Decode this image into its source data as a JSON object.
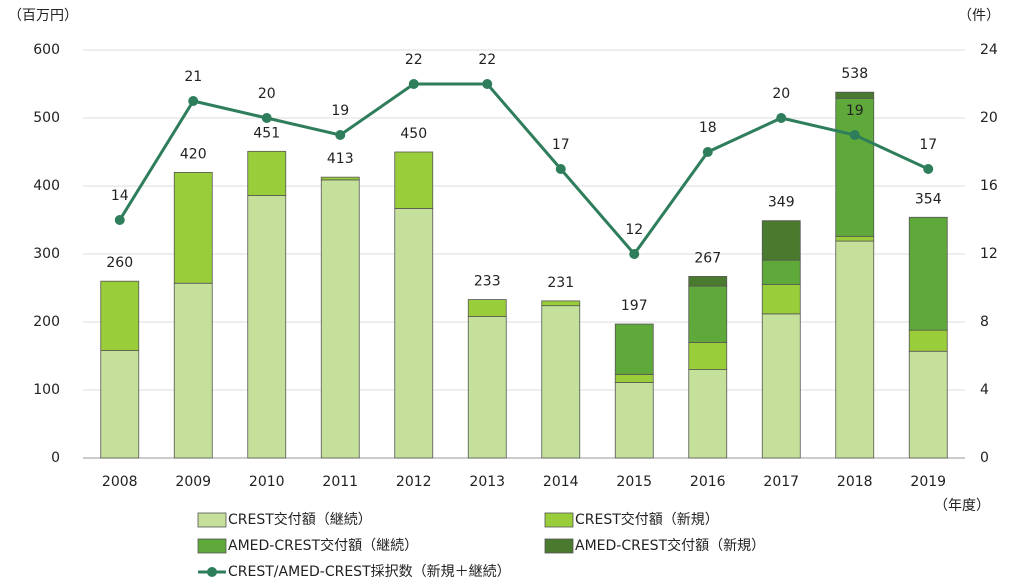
{
  "chart_data": {
    "type": "bar",
    "y_label": "（百万円）",
    "y2_label": "（件）",
    "x_label": "（年度）",
    "categories": [
      "2008",
      "2009",
      "2010",
      "2011",
      "2012",
      "2013",
      "2014",
      "2015",
      "2016",
      "2017",
      "2018",
      "2019"
    ],
    "stacked": true,
    "series": [
      {
        "name": "CREST交付額（継続）",
        "color": "#c5e09a",
        "values": [
          158,
          257,
          386,
          409,
          367,
          208,
          224,
          111,
          130,
          212,
          319,
          157
        ]
      },
      {
        "name": "CREST交付額（新規）",
        "color": "#9acd3a",
        "values": [
          102,
          163,
          65,
          4,
          83,
          25,
          7,
          12,
          40,
          43,
          7,
          31
        ]
      },
      {
        "name": "AMED-CREST交付額（継続）",
        "color": "#5fa83a",
        "values": [
          0,
          0,
          0,
          0,
          0,
          0,
          0,
          74,
          83,
          36,
          203,
          166
        ]
      },
      {
        "name": "AMED-CREST交付額（新規）",
        "color": "#4a7a2e",
        "values": [
          0,
          0,
          0,
          0,
          0,
          0,
          0,
          0,
          14,
          58,
          9,
          0
        ]
      },
      {
        "name": "CREST/AMED-CREST採択数（新規＋継続）",
        "color": "#2e7d5b",
        "type": "line",
        "axis": "y2",
        "values": [
          14,
          21,
          20,
          19,
          22,
          22,
          17,
          12,
          18,
          20,
          19,
          17
        ]
      }
    ],
    "totals": [
      260,
      420,
      451,
      413,
      450,
      233,
      231,
      197,
      267,
      349,
      538,
      354
    ],
    "ylim": [
      0,
      600
    ],
    "yticks": [
      0,
      100,
      200,
      300,
      400,
      500,
      600
    ],
    "y2lim": [
      0,
      24
    ],
    "y2ticks": [
      0,
      4,
      8,
      12,
      16,
      20,
      24
    ]
  }
}
